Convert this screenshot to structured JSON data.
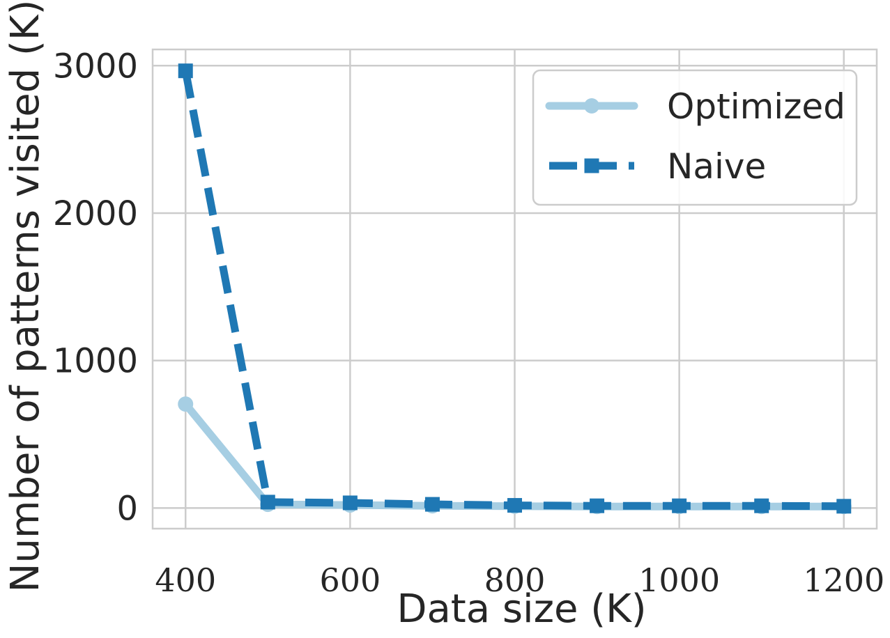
{
  "chart_data": {
    "type": "line",
    "xlabel": "Data size (K)",
    "ylabel": "Number of patterns visited (K)",
    "x": [
      400,
      500,
      600,
      700,
      800,
      900,
      1000,
      1100,
      1200
    ],
    "xlim": [
      360,
      1240
    ],
    "ylim": [
      -140,
      3110
    ],
    "xticks": [
      400,
      600,
      800,
      1000,
      1200
    ],
    "xtick_labels": [
      "400",
      "600",
      "800",
      "1000",
      "1200"
    ],
    "yticks": [
      0,
      1000,
      2000,
      3000
    ],
    "ytick_labels": [
      "0",
      "1000",
      "2000",
      "3000"
    ],
    "grid": true,
    "legend_position": "top-right",
    "series": [
      {
        "name": "Optimized",
        "values": [
          705,
          25,
          20,
          15,
          12,
          10,
          10,
          10,
          10
        ],
        "color": "#a6cee3",
        "marker": "circle",
        "linestyle": "solid"
      },
      {
        "name": "Naive",
        "values": [
          2965,
          40,
          35,
          25,
          18,
          15,
          15,
          15,
          12
        ],
        "color": "#1f78b4",
        "marker": "square",
        "linestyle": "dashed"
      }
    ]
  }
}
